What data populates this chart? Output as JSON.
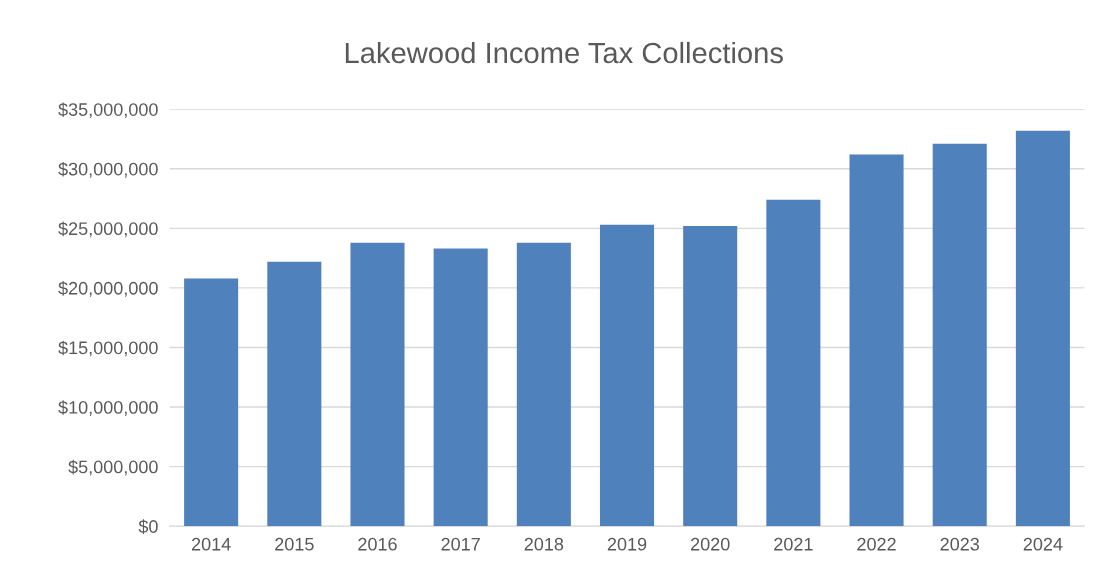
{
  "chart_data": {
    "type": "bar",
    "title": "Lakewood Income Tax Collections",
    "categories": [
      "2014",
      "2015",
      "2016",
      "2017",
      "2018",
      "2019",
      "2020",
      "2021",
      "2022",
      "2023",
      "2024"
    ],
    "values": [
      20800000,
      22200000,
      23800000,
      23300000,
      23800000,
      25300000,
      25200000,
      27400000,
      31200000,
      32100000,
      33200000
    ],
    "color": "#4f81bd",
    "ylim": [
      0,
      35000000
    ],
    "yticks": [
      {
        "value": 0,
        "label": "$0"
      },
      {
        "value": 5000000,
        "label": "$5,000,000"
      },
      {
        "value": 10000000,
        "label": "$10,000,000"
      },
      {
        "value": 15000000,
        "label": "$15,000,000"
      },
      {
        "value": 20000000,
        "label": "$20,000,000"
      },
      {
        "value": 25000000,
        "label": "$25,000,000"
      },
      {
        "value": 30000000,
        "label": "$30,000,000"
      },
      {
        "value": 35000000,
        "label": "$35,000,000"
      }
    ],
    "grid": "y",
    "legend": false
  }
}
